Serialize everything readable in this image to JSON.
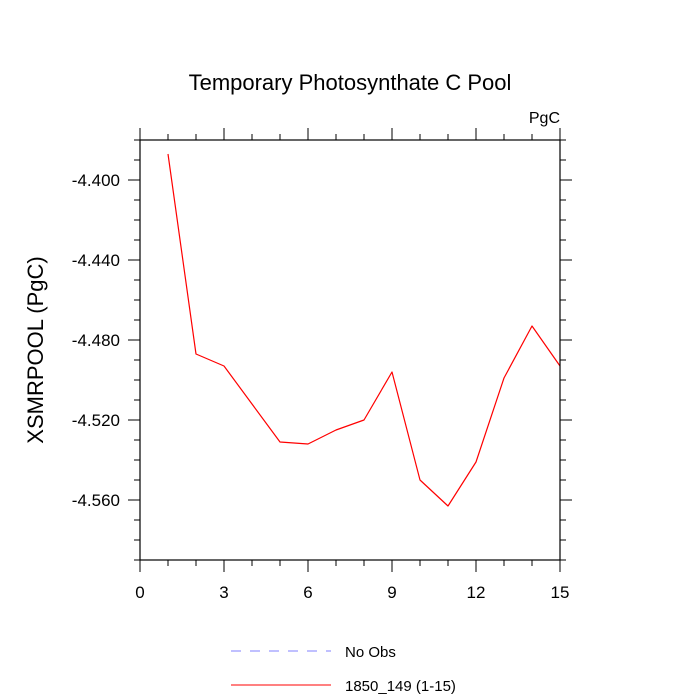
{
  "chart_data": {
    "type": "line",
    "title": "Temporary Photosynthate C Pool",
    "units_label": "PgC",
    "ylabel": "XSMRPOOL  (PgC)",
    "xlabel": "",
    "xlim": [
      0,
      15
    ],
    "ylim": [
      -4.59,
      -4.38
    ],
    "x_ticks": [
      0,
      3,
      6,
      9,
      12,
      15
    ],
    "y_ticks": [
      -4.4,
      -4.44,
      -4.48,
      -4.52,
      -4.56
    ],
    "y_tick_labels": [
      "-4.400",
      "-4.440",
      "-4.480",
      "-4.520",
      "-4.560"
    ],
    "legend_position": "bottom",
    "series": [
      {
        "name": "No Obs",
        "color": "#8080ff",
        "style": "dashed",
        "x": [],
        "values": []
      },
      {
        "name": "1850_149 (1-15)",
        "color": "#ff0000",
        "style": "solid",
        "x": [
          1,
          2,
          3,
          4,
          5,
          6,
          7,
          8,
          9,
          10,
          11,
          12,
          13,
          14,
          15
        ],
        "values": [
          -4.387,
          -4.487,
          -4.493,
          -4.512,
          -4.531,
          -4.532,
          -4.525,
          -4.52,
          -4.496,
          -4.55,
          -4.563,
          -4.541,
          -4.499,
          -4.473,
          -4.493
        ]
      }
    ]
  }
}
